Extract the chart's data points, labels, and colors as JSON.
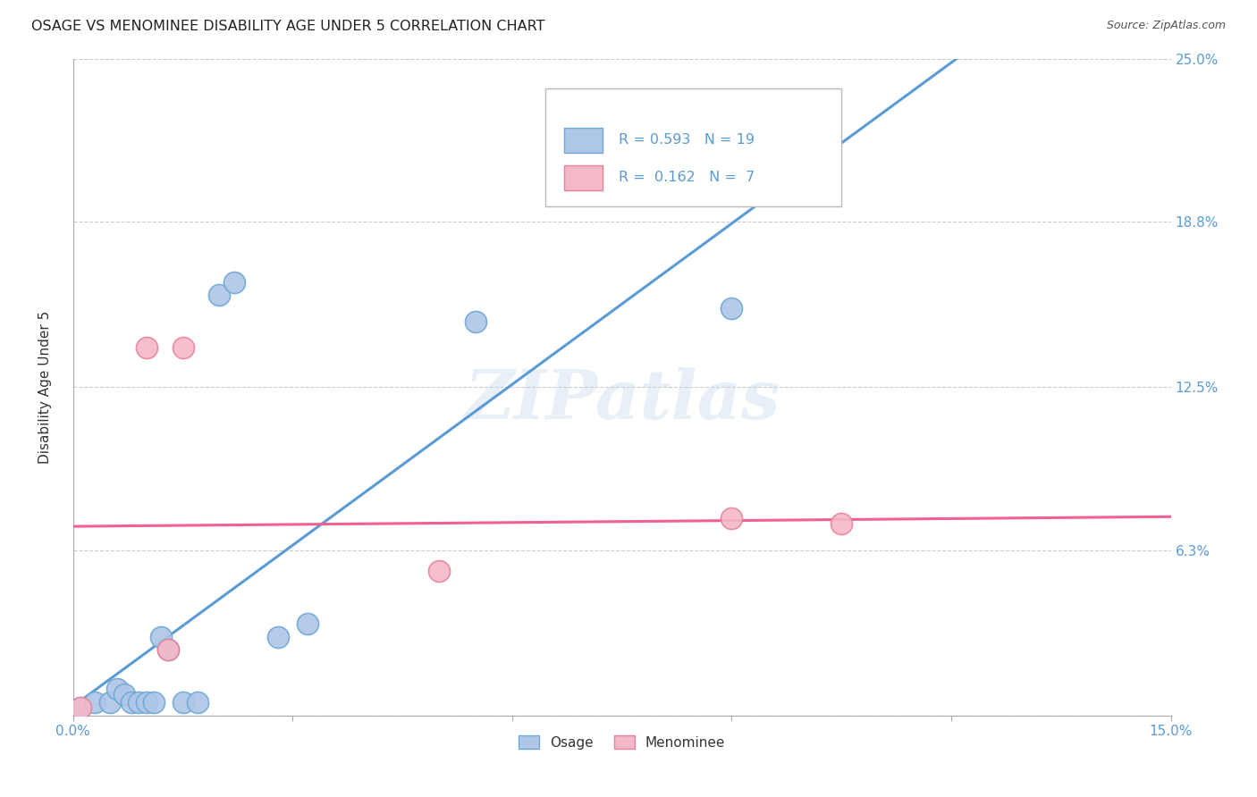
{
  "title": "OSAGE VS MENOMINEE DISABILITY AGE UNDER 5 CORRELATION CHART",
  "source": "Source: ZipAtlas.com",
  "ylabel": "Disability Age Under 5",
  "xlim": [
    0.0,
    0.15
  ],
  "ylim": [
    0.0,
    0.25
  ],
  "xticks": [
    0.0,
    0.03,
    0.06,
    0.09,
    0.12,
    0.15
  ],
  "xticklabels": [
    "0.0%",
    "",
    "",
    "",
    "",
    "15.0%"
  ],
  "ytick_positions": [
    0.0,
    0.063,
    0.125,
    0.188,
    0.25
  ],
  "yticklabels": [
    "",
    "6.3%",
    "12.5%",
    "18.8%",
    "25.0%"
  ],
  "osage_x": [
    0.001,
    0.003,
    0.005,
    0.006,
    0.007,
    0.008,
    0.009,
    0.01,
    0.011,
    0.012,
    0.013,
    0.015,
    0.017,
    0.02,
    0.022,
    0.028,
    0.032,
    0.055,
    0.09
  ],
  "osage_y": [
    0.003,
    0.005,
    0.005,
    0.01,
    0.008,
    0.005,
    0.005,
    0.005,
    0.005,
    0.03,
    0.025,
    0.005,
    0.005,
    0.16,
    0.165,
    0.03,
    0.035,
    0.15,
    0.155
  ],
  "menominee_x": [
    0.001,
    0.01,
    0.013,
    0.015,
    0.05,
    0.09,
    0.105
  ],
  "menominee_y": [
    0.003,
    0.14,
    0.025,
    0.14,
    0.055,
    0.075,
    0.073
  ],
  "osage_color": "#aec6e8",
  "osage_edge_color": "#6fa8d4",
  "osage_line_color": "#5b9bd5",
  "menominee_color": "#f4b8c8",
  "menominee_edge_color": "#e8829a",
  "menominee_line_color": "#f06090",
  "R_osage": 0.593,
  "N_osage": 19,
  "R_menominee": 0.162,
  "N_menominee": 7,
  "watermark": "ZIPatlas",
  "background_color": "#ffffff",
  "grid_color": "#cccccc"
}
